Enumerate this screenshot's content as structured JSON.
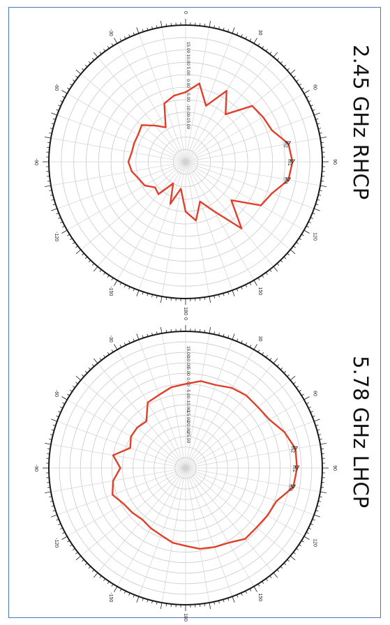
{
  "chart_data": [
    {
      "type": "polar",
      "title": "2.45 GHz RHCP",
      "angle_ticks": [
        "0",
        "30",
        "60",
        "90",
        "120",
        "150",
        "180",
        "-150",
        "-120",
        "-90",
        "-60",
        "-30"
      ],
      "radial_labels": [
        "15.00",
        "10.00",
        "5.00",
        "0.00",
        "-5.00",
        "-10.00",
        "-15.00"
      ],
      "rlim": [
        -35,
        20
      ],
      "markers": [
        "m2",
        "m1",
        "m3"
      ],
      "series": [
        {
          "color": "#e0402a",
          "angles_deg": [
            0,
            10,
            20,
            30,
            40,
            50,
            60,
            70,
            80,
            90,
            100,
            110,
            120,
            130,
            140,
            150,
            160,
            170,
            180,
            190,
            200,
            210,
            220,
            230,
            240,
            250,
            260,
            270,
            280,
            290,
            300,
            310,
            320,
            330,
            340,
            350,
            360
          ],
          "gain_db": [
            -7,
            -3,
            -11,
            -2,
            -10,
            0,
            1,
            2,
            7,
            8,
            7,
            2,
            0,
            -11,
            0,
            -12,
            -18,
            -11,
            -15,
            -24,
            -17,
            -25,
            -18,
            -19,
            -16,
            -15,
            -13,
            -12,
            -13,
            -13,
            -13,
            -12,
            -16,
            -19,
            -10,
            -8,
            -7
          ]
        }
      ]
    },
    {
      "type": "polar",
      "title": "5.78 GHz LHCP",
      "angle_ticks": [
        "0",
        "30",
        "60",
        "90",
        "120",
        "150",
        "180",
        "-150",
        "-120",
        "-90",
        "-60",
        "-30"
      ],
      "radial_labels": [
        "15.00",
        "10.00",
        "5.00",
        "0.00",
        "-5.00",
        "-10.00",
        "-15.00",
        "-20.00",
        "-25.00"
      ],
      "rlim": [
        -45,
        20
      ],
      "markers": [
        "m2",
        "m1",
        "m3"
      ],
      "series": [
        {
          "color": "#e0402a",
          "angles_deg": [
            0,
            10,
            20,
            30,
            40,
            50,
            60,
            70,
            80,
            90,
            100,
            110,
            120,
            130,
            140,
            150,
            160,
            170,
            180,
            190,
            200,
            210,
            220,
            230,
            240,
            250,
            260,
            270,
            280,
            290,
            300,
            310,
            320,
            330,
            340,
            350,
            360
          ],
          "gain_db": [
            -5,
            -3,
            -3,
            -1,
            0,
            0,
            1,
            5,
            8,
            8,
            7,
            1,
            0,
            -1,
            -1,
            -4,
            -5,
            -6,
            -8,
            -9,
            -11,
            -12,
            -13,
            -12,
            -11,
            -8,
            -10,
            -14,
            -10,
            -17,
            -15,
            -15,
            -16,
            -9,
            -8,
            -6,
            -5
          ]
        }
      ]
    }
  ]
}
